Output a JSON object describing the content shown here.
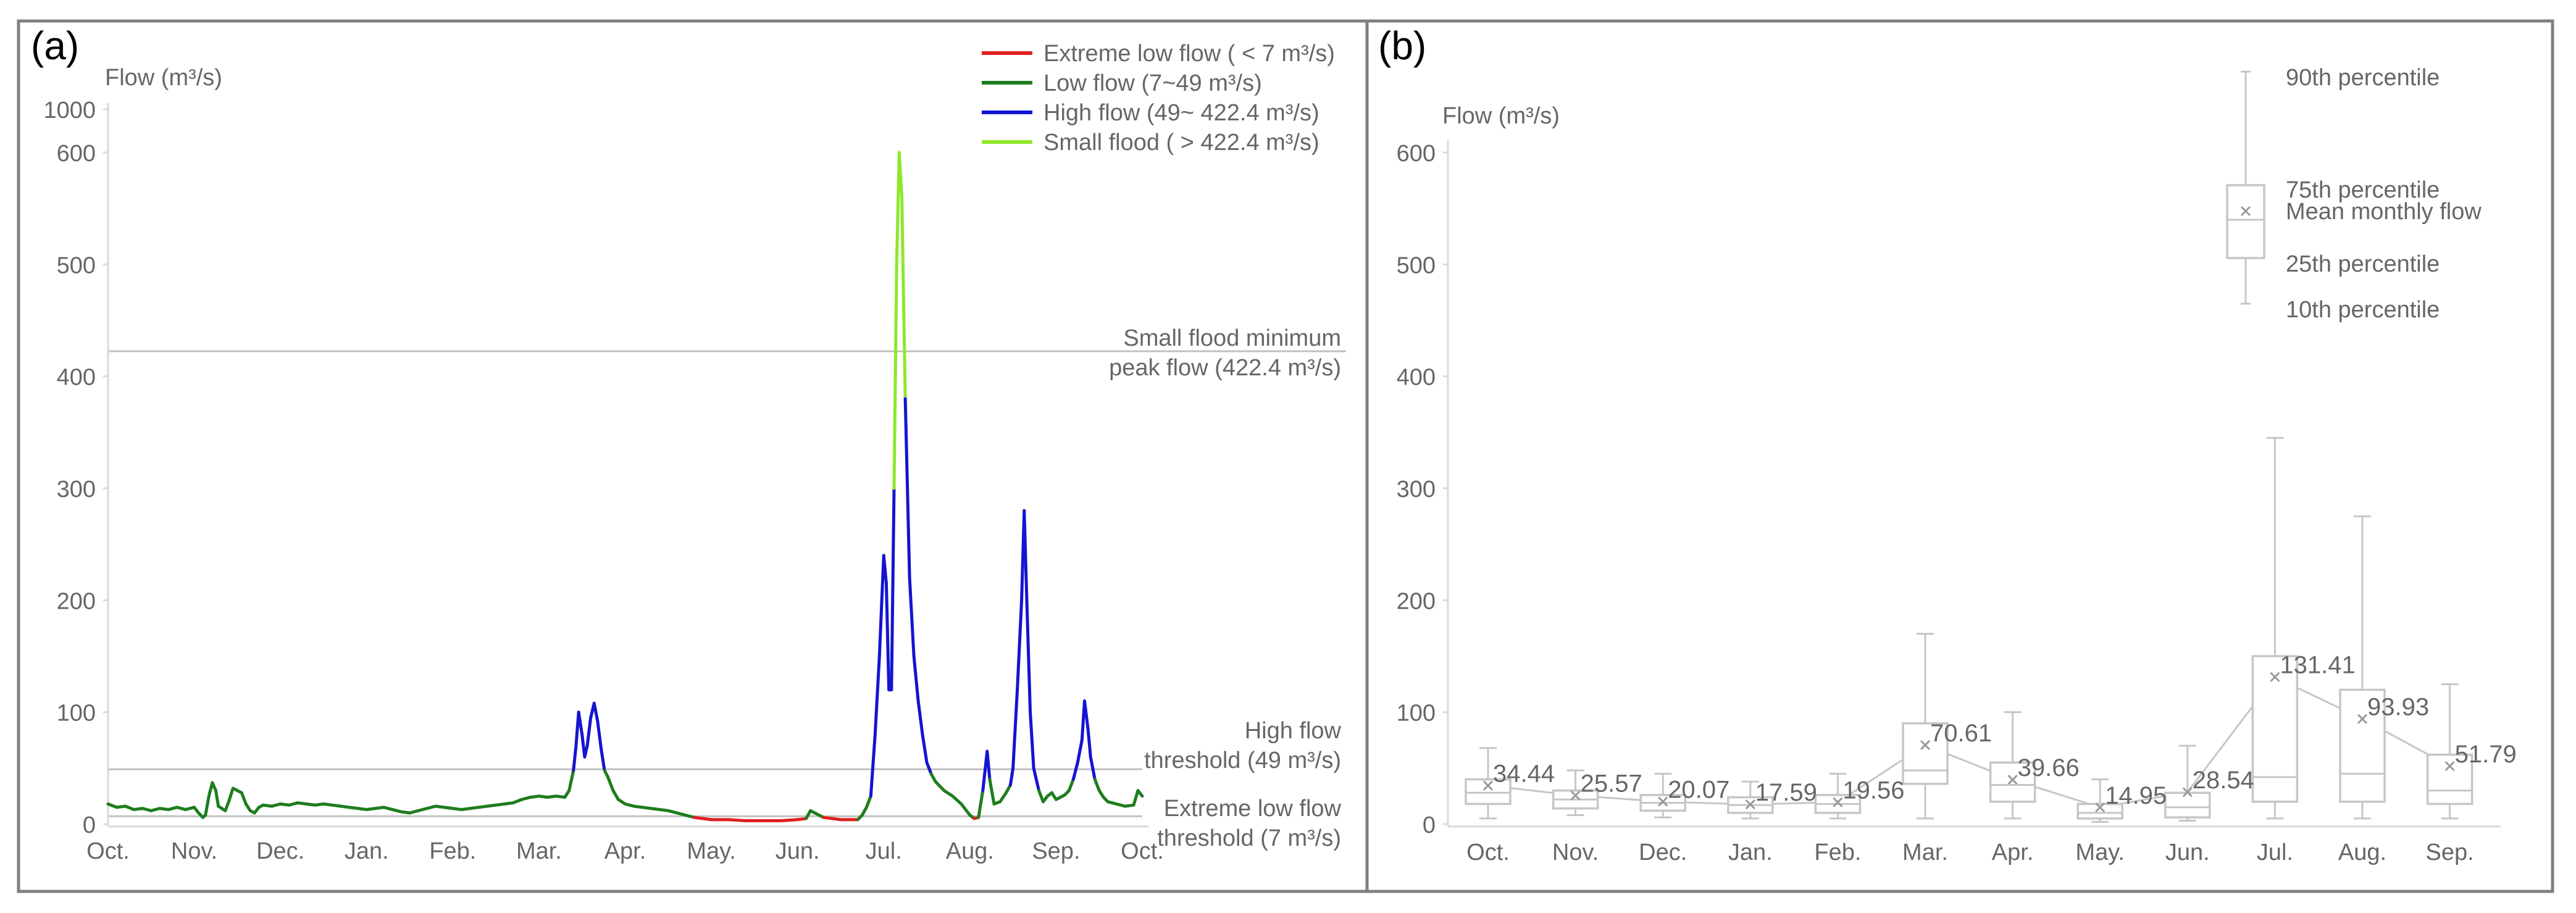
{
  "chart_data": [
    {
      "panel": "(a)",
      "type": "line",
      "ylabel": "Flow (m³/s)",
      "y_scale": "broken",
      "y_ticks": [
        0,
        100,
        200,
        300,
        400,
        500,
        600,
        1000
      ],
      "categories": [
        "Oct.",
        "Nov.",
        "Dec.",
        "Jan.",
        "Feb.",
        "Mar.",
        "Apr.",
        "May.",
        "Jun.",
        "Jul.",
        "Aug.",
        "Sep.",
        "Oct."
      ],
      "legend": [
        {
          "label": "Extreme low flow ( < 7 m³/s)",
          "color": "#e02020"
        },
        {
          "label": "Low flow (7~49 m³/s)",
          "color": "#1e7d1e"
        },
        {
          "label": "High flow (49~ 422.4 m³/s)",
          "color": "#1414d2"
        },
        {
          "label": "Small flood ( > 422.4 m³/s)",
          "color": "#8ee82a"
        }
      ],
      "thresholds": [
        {
          "value": 422.4,
          "label1": "Small flood minimum",
          "label2": "peak flow (422.4 m³/s)"
        },
        {
          "value": 49,
          "label1": "High flow",
          "label2": "threshold (49 m³/s)"
        },
        {
          "value": 7,
          "label1": "Extreme low flow",
          "label2": "threshold (7 m³/s)"
        }
      ],
      "series": [
        {
          "name": "Flow",
          "points": [
            [
              0,
              18
            ],
            [
              0.1,
              15
            ],
            [
              0.2,
              16
            ],
            [
              0.3,
              13
            ],
            [
              0.4,
              14
            ],
            [
              0.5,
              12
            ],
            [
              0.6,
              14
            ],
            [
              0.7,
              13
            ],
            [
              0.8,
              15
            ],
            [
              0.9,
              13
            ],
            [
              1.0,
              15
            ],
            [
              1.05,
              10
            ],
            [
              1.1,
              6
            ],
            [
              1.13,
              8
            ],
            [
              1.17,
              25
            ],
            [
              1.21,
              37
            ],
            [
              1.25,
              30
            ],
            [
              1.28,
              16
            ],
            [
              1.32,
              14
            ],
            [
              1.36,
              12
            ],
            [
              1.4,
              20
            ],
            [
              1.45,
              32
            ],
            [
              1.5,
              30
            ],
            [
              1.55,
              28
            ],
            [
              1.6,
              18
            ],
            [
              1.65,
              12
            ],
            [
              1.7,
              10
            ],
            [
              1.75,
              15
            ],
            [
              1.8,
              17
            ],
            [
              1.9,
              16
            ],
            [
              2.0,
              18
            ],
            [
              2.1,
              17
            ],
            [
              2.2,
              19
            ],
            [
              2.3,
              18
            ],
            [
              2.4,
              17
            ],
            [
              2.5,
              18
            ],
            [
              2.6,
              17
            ],
            [
              2.7,
              16
            ],
            [
              2.8,
              15
            ],
            [
              2.9,
              14
            ],
            [
              3.0,
              13
            ],
            [
              3.1,
              14
            ],
            [
              3.2,
              15
            ],
            [
              3.3,
              13
            ],
            [
              3.4,
              11
            ],
            [
              3.5,
              10
            ],
            [
              3.6,
              12
            ],
            [
              3.7,
              14
            ],
            [
              3.8,
              16
            ],
            [
              3.9,
              15
            ],
            [
              4.0,
              14
            ],
            [
              4.1,
              13
            ],
            [
              4.2,
              14
            ],
            [
              4.3,
              15
            ],
            [
              4.4,
              16
            ],
            [
              4.5,
              17
            ],
            [
              4.6,
              18
            ],
            [
              4.7,
              19
            ],
            [
              4.8,
              22
            ],
            [
              4.9,
              24
            ],
            [
              5.0,
              25
            ],
            [
              5.1,
              24
            ],
            [
              5.2,
              25
            ],
            [
              5.3,
              24
            ],
            [
              5.35,
              30
            ],
            [
              5.4,
              48
            ],
            [
              5.43,
              70
            ],
            [
              5.46,
              100
            ],
            [
              5.5,
              80
            ],
            [
              5.53,
              60
            ],
            [
              5.56,
              70
            ],
            [
              5.6,
              95
            ],
            [
              5.64,
              108
            ],
            [
              5.68,
              92
            ],
            [
              5.72,
              68
            ],
            [
              5.76,
              48
            ],
            [
              5.8,
              42
            ],
            [
              5.86,
              30
            ],
            [
              5.92,
              22
            ],
            [
              6.0,
              18
            ],
            [
              6.1,
              16
            ],
            [
              6.2,
              15
            ],
            [
              6.3,
              14
            ],
            [
              6.4,
              13
            ],
            [
              6.5,
              12
            ],
            [
              6.6,
              10
            ],
            [
              6.7,
              8
            ],
            [
              6.8,
              6
            ],
            [
              6.9,
              5
            ],
            [
              7.0,
              4
            ],
            [
              7.2,
              4
            ],
            [
              7.4,
              3
            ],
            [
              7.6,
              3
            ],
            [
              7.8,
              3
            ],
            [
              8.0,
              4
            ],
            [
              8.1,
              5
            ],
            [
              8.15,
              12
            ],
            [
              8.2,
              10
            ],
            [
              8.3,
              6
            ],
            [
              8.4,
              5
            ],
            [
              8.5,
              4
            ],
            [
              8.6,
              4
            ],
            [
              8.7,
              4
            ],
            [
              8.75,
              8
            ],
            [
              8.8,
              15
            ],
            [
              8.85,
              25
            ],
            [
              8.9,
              80
            ],
            [
              8.95,
              150
            ],
            [
              9.0,
              240
            ],
            [
              9.03,
              215
            ],
            [
              9.06,
              120
            ],
            [
              9.09,
              120
            ],
            [
              9.12,
              300
            ],
            [
              9.15,
              500
            ],
            [
              9.18,
              600
            ],
            [
              9.21,
              560
            ],
            [
              9.25,
              380
            ],
            [
              9.3,
              220
            ],
            [
              9.35,
              150
            ],
            [
              9.4,
              110
            ],
            [
              9.45,
              80
            ],
            [
              9.5,
              55
            ],
            [
              9.55,
              45
            ],
            [
              9.6,
              38
            ],
            [
              9.7,
              30
            ],
            [
              9.8,
              25
            ],
            [
              9.9,
              18
            ],
            [
              10.0,
              8
            ],
            [
              10.05,
              5
            ],
            [
              10.1,
              6
            ],
            [
              10.15,
              30
            ],
            [
              10.2,
              65
            ],
            [
              10.23,
              40
            ],
            [
              10.28,
              18
            ],
            [
              10.35,
              20
            ],
            [
              10.42,
              28
            ],
            [
              10.47,
              35
            ],
            [
              10.5,
              50
            ],
            [
              10.55,
              120
            ],
            [
              10.6,
              200
            ],
            [
              10.63,
              280
            ],
            [
              10.66,
              200
            ],
            [
              10.7,
              100
            ],
            [
              10.74,
              50
            ],
            [
              10.8,
              30
            ],
            [
              10.85,
              20
            ],
            [
              10.9,
              25
            ],
            [
              10.95,
              28
            ],
            [
              11.0,
              22
            ],
            [
              11.1,
              26
            ],
            [
              11.15,
              30
            ],
            [
              11.2,
              40
            ],
            [
              11.25,
              55
            ],
            [
              11.3,
              75
            ],
            [
              11.33,
              110
            ],
            [
              11.37,
              85
            ],
            [
              11.4,
              60
            ],
            [
              11.45,
              40
            ],
            [
              11.5,
              30
            ],
            [
              11.55,
              24
            ],
            [
              11.6,
              20
            ],
            [
              11.7,
              18
            ],
            [
              11.8,
              16
            ],
            [
              11.9,
              17
            ],
            [
              11.95,
              30
            ],
            [
              12.0,
              25
            ]
          ]
        }
      ]
    },
    {
      "panel": "(b)",
      "type": "box",
      "ylabel": "Flow (m³/s)",
      "y_ticks": [
        0,
        100,
        200,
        300,
        400,
        500,
        600
      ],
      "ylim": [
        0,
        600
      ],
      "categories": [
        "Oct.",
        "Nov.",
        "Dec.",
        "Jan.",
        "Feb.",
        "Mar.",
        "Apr.",
        "May.",
        "Jun.",
        "Jul.",
        "Aug.",
        "Sep."
      ],
      "mean_labels": [
        "34.44",
        "25.57",
        "20.07",
        "17.59",
        "19.56",
        "70.61",
        "39.66",
        "14.95",
        "28.54",
        "131.41",
        "93.93",
        "51.79"
      ],
      "boxes": [
        {
          "p10": 5,
          "p25": 18,
          "median": 28,
          "p75": 40,
          "p90": 68,
          "mean": 34.44
        },
        {
          "p10": 8,
          "p25": 14,
          "median": 22,
          "p75": 30,
          "p90": 48,
          "mean": 25.57
        },
        {
          "p10": 6,
          "p25": 12,
          "median": 19,
          "p75": 26,
          "p90": 45,
          "mean": 20.07
        },
        {
          "p10": 5,
          "p25": 10,
          "median": 17,
          "p75": 24,
          "p90": 38,
          "mean": 17.59
        },
        {
          "p10": 5,
          "p25": 10,
          "median": 18,
          "p75": 26,
          "p90": 45,
          "mean": 19.56
        },
        {
          "p10": 5,
          "p25": 36,
          "median": 48,
          "p75": 90,
          "p90": 170,
          "mean": 70.61
        },
        {
          "p10": 5,
          "p25": 20,
          "median": 35,
          "p75": 55,
          "p90": 100,
          "mean": 39.66
        },
        {
          "p10": 2,
          "p25": 5,
          "median": 10,
          "p75": 18,
          "p90": 40,
          "mean": 14.95
        },
        {
          "p10": 3,
          "p25": 6,
          "median": 15,
          "p75": 28,
          "p90": 70,
          "mean": 28.54
        },
        {
          "p10": 5,
          "p25": 20,
          "median": 42,
          "p75": 150,
          "p90": 345,
          "mean": 131.41
        },
        {
          "p10": 5,
          "p25": 20,
          "median": 45,
          "p75": 120,
          "p90": 275,
          "mean": 93.93
        },
        {
          "p10": 5,
          "p25": 18,
          "median": 30,
          "p75": 62,
          "p90": 125,
          "mean": 51.79
        }
      ],
      "legend_labels": {
        "p90": "90th percentile",
        "p75": "75th percentile",
        "mean": "Mean monthly flow",
        "p25": "25th percentile",
        "p10": "10th percentile"
      }
    }
  ]
}
